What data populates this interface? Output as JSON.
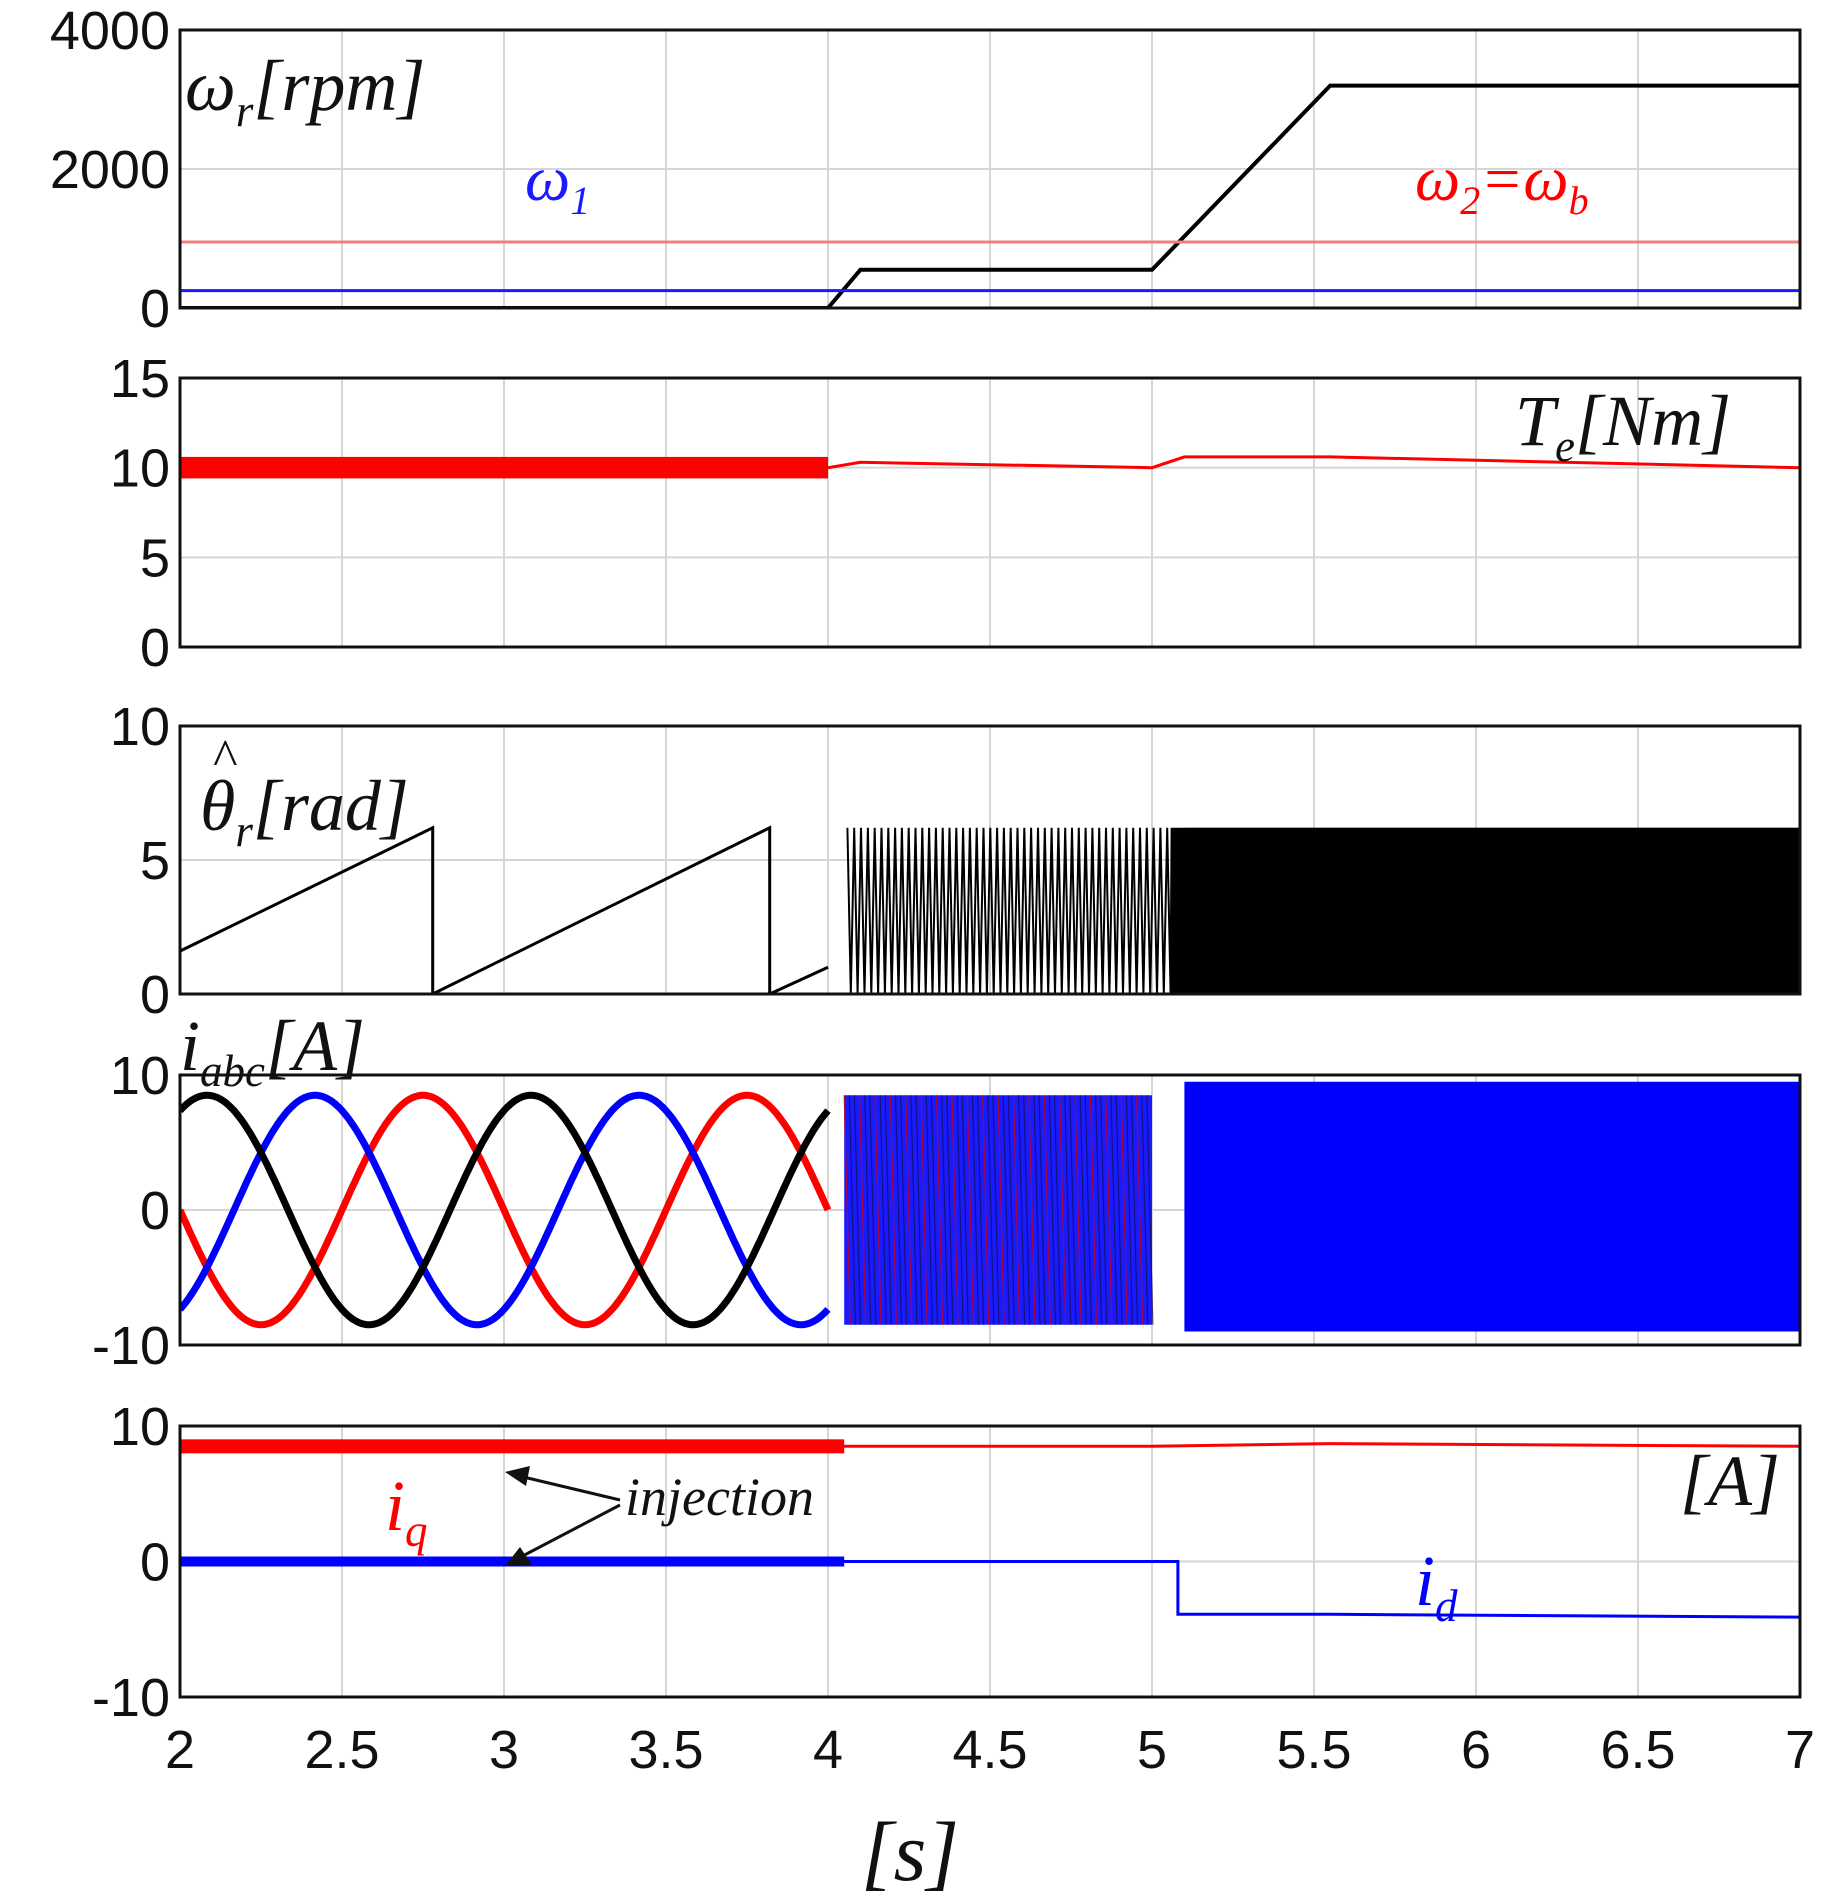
{
  "figure": {
    "x_axis": {
      "label": "[s]",
      "lim": [
        2,
        7
      ],
      "ticks": [
        "2",
        "2.5",
        "3",
        "3.5",
        "4",
        "4.5",
        "5",
        "5.5",
        "6",
        "6.5",
        "7"
      ]
    }
  },
  "chart_data": [
    {
      "id": "speed",
      "type": "line",
      "ylabel_main": "ω",
      "ylabel_sub": "r",
      "ylabel_unit": "[rpm]",
      "ylim": [
        0,
        4000
      ],
      "yticks": [
        "4000",
        "2000",
        "0"
      ],
      "grid": true,
      "annotations": {
        "w1_main": "ω",
        "w1_sub": "1",
        "w2_main": "ω",
        "w2_sub": "2",
        "w2_eq": "=",
        "wb_main": "ω",
        "wb_sub": "b"
      },
      "series": [
        {
          "name": "ω_r",
          "color": "#000000",
          "x": [
            2,
            4,
            4.1,
            5,
            5.55,
            7
          ],
          "y": [
            0,
            0,
            550,
            550,
            3200,
            3200
          ]
        },
        {
          "name": "ω_2 = ω_b",
          "color": "#f08080",
          "x": [
            2,
            7
          ],
          "y": [
            950,
            950
          ]
        },
        {
          "name": "ω_1",
          "color": "#1a1aff",
          "x": [
            2,
            7
          ],
          "y": [
            250,
            250
          ]
        },
        {
          "name": "ω_r estimate",
          "color": "#2f6f8f",
          "x": [
            4,
            7
          ],
          "y": [
            0,
            0
          ]
        }
      ]
    },
    {
      "id": "torque",
      "type": "line",
      "ylabel_main": "T",
      "ylabel_sub": "e",
      "ylabel_unit": "[Nm]",
      "ylim": [
        0,
        15
      ],
      "yticks": [
        "15",
        "10",
        "5",
        "0"
      ],
      "grid": true,
      "series": [
        {
          "name": "T_e",
          "color": "#ff0000",
          "x": [
            2,
            4,
            4.1,
            5,
            5.1,
            5.55,
            7
          ],
          "y": [
            10,
            10,
            10.3,
            10,
            10.6,
            10.6,
            10
          ],
          "band": {
            "x": [
              2,
              4
            ],
            "y": [
              9.4,
              10.6
            ]
          }
        }
      ]
    },
    {
      "id": "theta",
      "type": "line",
      "ylabel_main": "θ",
      "ylabel_hat": "^",
      "ylabel_sub": "r",
      "ylabel_unit": "[rad]",
      "ylim": [
        0,
        10
      ],
      "yticks": [
        "10",
        "5",
        "0"
      ],
      "grid": true,
      "series": [
        {
          "name": "θ_r estimate",
          "color": "#000000",
          "x": [
            2,
            2.78,
            2.78,
            3.82,
            3.82,
            4.0
          ],
          "y": [
            1.6,
            6.2,
            0,
            6.2,
            0,
            1.0
          ],
          "oscillation": {
            "x_start": 4.06,
            "x_end": 7,
            "y_low": 0,
            "y_high": 6.2,
            "dense_after": 5.05
          }
        }
      ]
    },
    {
      "id": "currents_abc",
      "type": "line",
      "ylabel_main": "i",
      "ylabel_sub": "abc",
      "ylabel_unit": "[A]",
      "ylim": [
        -10,
        10
      ],
      "yticks": [
        "10",
        "0",
        "-10"
      ],
      "grid": true,
      "series": [
        {
          "name": "i_a",
          "color": "#ff0000",
          "amplitude": 8.5,
          "period": 1.0,
          "phase_deg": 180,
          "x_end": 4.0
        },
        {
          "name": "i_b",
          "color": "#0000ff",
          "amplitude": 8.5,
          "period": 1.0,
          "phase_deg": -60,
          "x_end": 4.0
        },
        {
          "name": "i_c",
          "color": "#000000",
          "amplitude": 8.5,
          "period": 1.0,
          "phase_deg": 60,
          "x_end": 4.0
        }
      ],
      "bands": [
        {
          "x": [
            4.05,
            5.0
          ],
          "y": [
            -8.5,
            8.5
          ],
          "color": "#1a1aff"
        },
        {
          "x": [
            5.1,
            7
          ],
          "y": [
            -9.0,
            9.5
          ],
          "color": "#0000ff"
        }
      ]
    },
    {
      "id": "dq_currents",
      "type": "line",
      "ylabel_unit": "[A]",
      "ylim": [
        -10,
        10
      ],
      "yticks": [
        "10",
        "0",
        "-10"
      ],
      "grid": true,
      "annotations": {
        "iq_main": "i",
        "iq_sub": "q",
        "id_main": "i",
        "id_sub": "d",
        "injection": "injection"
      },
      "series": [
        {
          "name": "i_q",
          "color": "#ff0000",
          "x": [
            2,
            4,
            4.1,
            5,
            5.55,
            7
          ],
          "y": [
            8.5,
            8.5,
            8.5,
            8.5,
            8.7,
            8.5
          ]
        },
        {
          "name": "i_d",
          "color": "#0000ff",
          "x": [
            2,
            4,
            4.1,
            5.08,
            5.08,
            5.55,
            7
          ],
          "y": [
            0,
            0,
            0,
            0,
            -3.9,
            -3.9,
            -4.1
          ]
        }
      ]
    }
  ]
}
